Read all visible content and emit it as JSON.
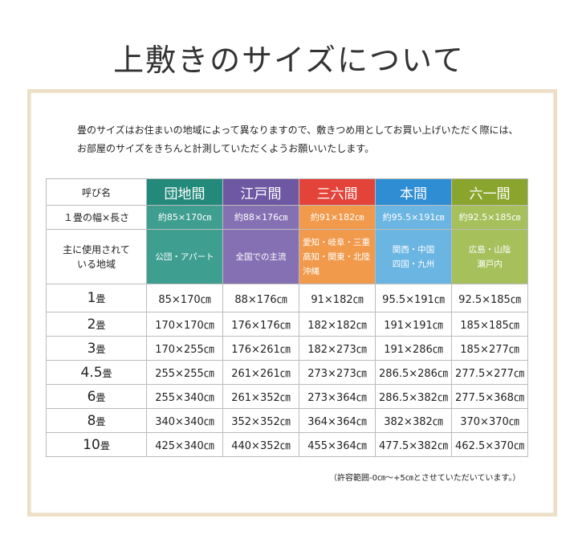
{
  "title": "上敷きのサイズについて",
  "intro": [
    "畳のサイズはお住まいの地域によって異なりますので、敷きつめ用としてお買い上げいただく際には、",
    "お部屋のサイズをきちんと計測していただくようお願いいたします。"
  ],
  "table": {
    "corner": "呼び名",
    "size_label": "１畳の幅×長さ",
    "area_label": [
      "主に使用されて",
      "いる地域"
    ],
    "columns": [
      {
        "name": "団地間",
        "size": "約85×170㎝",
        "area": [
          "公団・アパート"
        ],
        "color": "#23897a",
        "light": "#3e9f90"
      },
      {
        "name": "江戸間",
        "size": "約88×176㎝",
        "area": [
          "全国での主流"
        ],
        "color": "#6e58a3",
        "light": "#8670b4"
      },
      {
        "name": "三六間",
        "size": "約91×182㎝",
        "area": [
          "愛知・岐阜・三重",
          "高知・関東・北陸",
          "沖縄"
        ],
        "color": "#e4433a",
        "light": "#f19a4c"
      },
      {
        "name": "本間",
        "size": "約95.5×191㎝",
        "area": [
          "関西・中国",
          "四国・九州"
        ],
        "color": "#2f8ed3",
        "light": "#6bb5e2"
      },
      {
        "name": "六一間",
        "size": "約92.5×185㎝",
        "area": [
          "広島・山陰",
          "瀬戸内"
        ],
        "color": "#8aa52d",
        "light": "#a6c05c"
      }
    ],
    "rows": [
      {
        "num": "1",
        "unit": "畳",
        "cells": [
          "85×170㎝",
          "88×176㎝",
          "91×182㎝",
          "95.5×191㎝",
          "92.5×185㎝"
        ]
      },
      {
        "num": "2",
        "unit": "畳",
        "cells": [
          "170×170㎝",
          "176×176㎝",
          "182×182㎝",
          "191×191㎝",
          "185×185㎝"
        ]
      },
      {
        "num": "3",
        "unit": "畳",
        "cells": [
          "170×255㎝",
          "176×261㎝",
          "182×273㎝",
          "191×286㎝",
          "185×277㎝"
        ]
      },
      {
        "num": "4.5",
        "unit": "畳",
        "cells": [
          "255×255㎝",
          "261×261㎝",
          "273×273㎝",
          "286.5×286㎝",
          "277.5×277㎝"
        ]
      },
      {
        "num": "6",
        "unit": "畳",
        "cells": [
          "255×340㎝",
          "261×352㎝",
          "273×364㎝",
          "286.5×382㎝",
          "277.5×368㎝"
        ]
      },
      {
        "num": "8",
        "unit": "畳",
        "cells": [
          "340×340㎝",
          "352×352㎝",
          "364×364㎝",
          "382×382㎝",
          "370×370㎝"
        ]
      },
      {
        "num": "10",
        "unit": "畳",
        "cells": [
          "425×340㎝",
          "440×352㎝",
          "455×364㎝",
          "477.5×382㎝",
          "462.5×370㎝"
        ]
      }
    ]
  },
  "note": "（許容範囲-0㎝～+5㎝とさせていただいています。）"
}
